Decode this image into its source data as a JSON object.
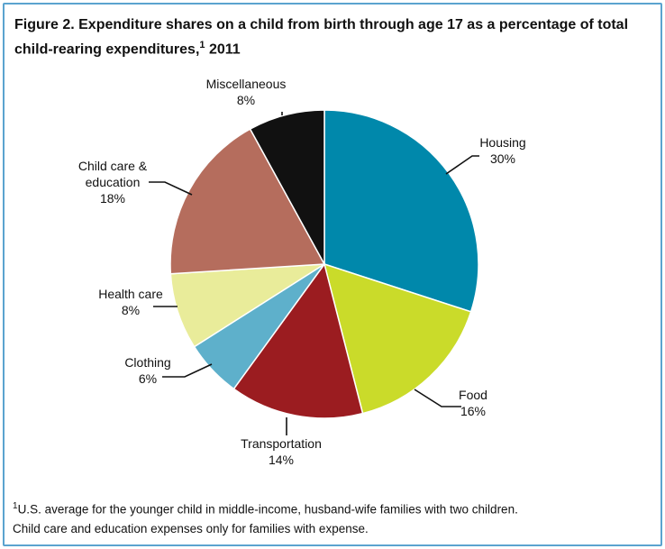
{
  "chart_data": {
    "type": "pie",
    "title_main": "Figure 2. Expenditure shares on a child from birth through age 17 as a percentage of total child-rearing expenditures,",
    "title_sup": "1",
    "title_year": " 2011",
    "slices": [
      {
        "name": "Housing",
        "label_lines": [
          "Housing"
        ],
        "value": 30,
        "pct_text": "30%",
        "color": "#0088ab"
      },
      {
        "name": "Food",
        "label_lines": [
          "Food"
        ],
        "value": 16,
        "pct_text": "16%",
        "color": "#cadb2a"
      },
      {
        "name": "Transportation",
        "label_lines": [
          "Transportation"
        ],
        "value": 14,
        "pct_text": "14%",
        "color": "#9b1c20"
      },
      {
        "name": "Clothing",
        "label_lines": [
          "Clothing"
        ],
        "value": 6,
        "pct_text": "6%",
        "color": "#5eb0cb"
      },
      {
        "name": "Health care",
        "label_lines": [
          "Health care"
        ],
        "value": 8,
        "pct_text": "8%",
        "color": "#e9ec9a"
      },
      {
        "name": "Child care & education",
        "label_lines": [
          "Child care &",
          "education"
        ],
        "value": 18,
        "pct_text": "18%",
        "color": "#b56d5d"
      },
      {
        "name": "Miscellaneous",
        "label_lines": [
          "Miscellaneous"
        ],
        "value": 8,
        "pct_text": "8%",
        "color": "#111111"
      }
    ]
  },
  "footnote": {
    "sup": "1",
    "line1": "U.S. average for the younger child in middle-income, husband-wife families with two children.",
    "line2": "Child care and education expenses only for families with expense."
  }
}
